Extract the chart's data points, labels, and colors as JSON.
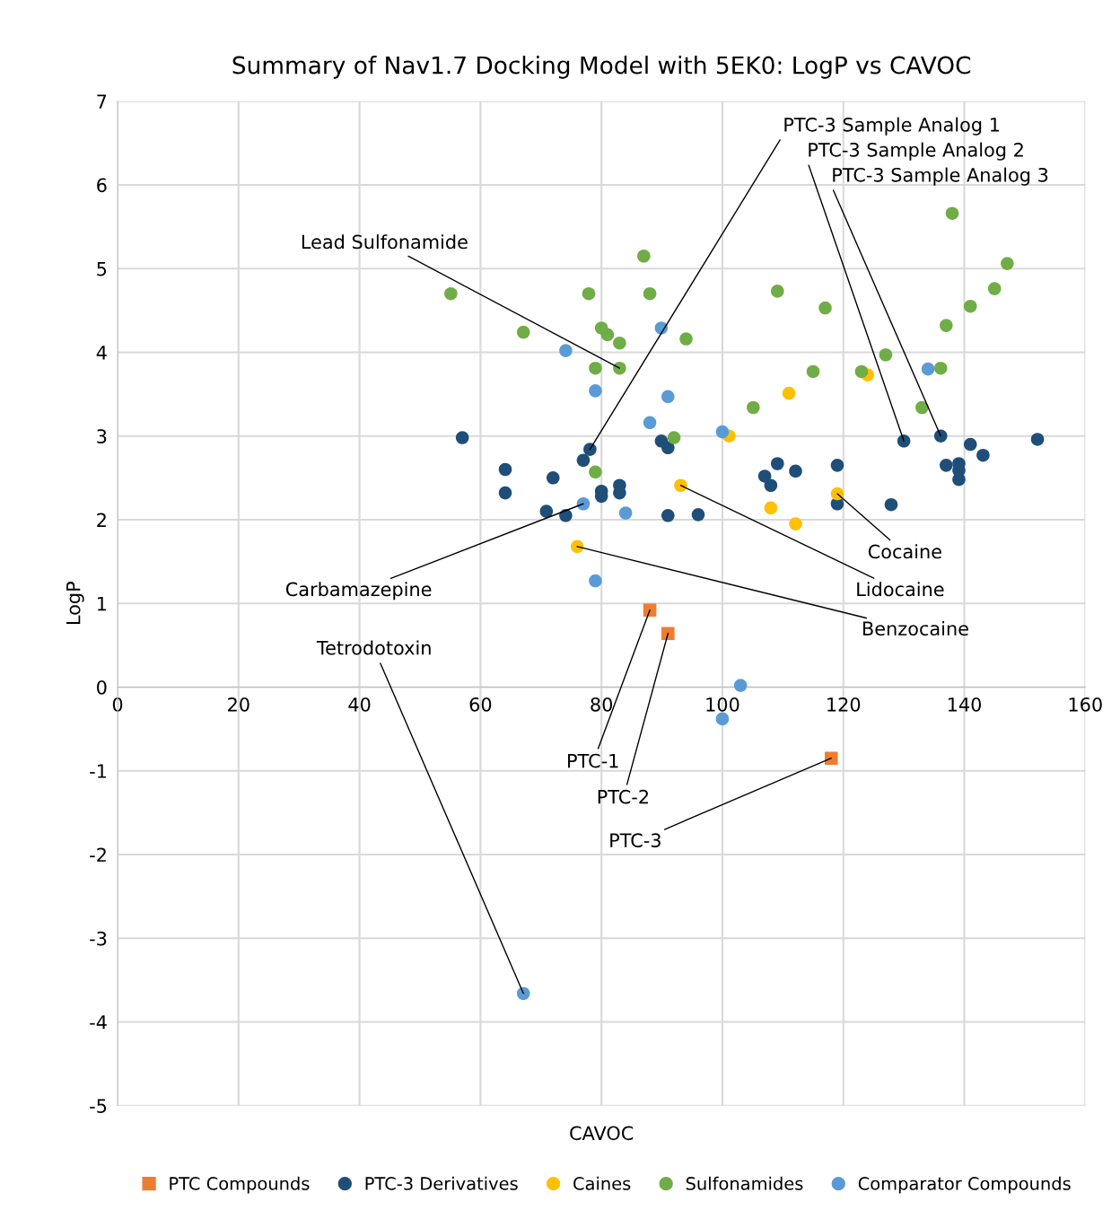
{
  "chart_data": {
    "type": "scatter",
    "title": "Summary of Nav1.7 Docking Model with 5EK0: LogP vs CAVOC",
    "xlabel": "CAVOC",
    "ylabel": "LogP",
    "xlim": [
      0,
      160
    ],
    "xticks": [
      0,
      20,
      40,
      60,
      80,
      100,
      120,
      140,
      160
    ],
    "ylim": [
      -5,
      7
    ],
    "yticks": [
      -5,
      -4,
      -3,
      -2,
      -1,
      0,
      1,
      2,
      3,
      4,
      5,
      6,
      7
    ],
    "grid": true,
    "legend": "bottom",
    "series": [
      {
        "name": "PTC Compounds",
        "color": "#ed7d31",
        "marker": "square",
        "x": [
          88.0,
          91.0,
          118.0
        ],
        "values": [
          0.92,
          0.64,
          -0.85
        ]
      },
      {
        "name": "PTC-3 Derivatives",
        "color": "#1f4e79",
        "marker": "circle",
        "x": [
          57.0,
          64.1,
          64.1,
          72.0,
          70.9,
          74.1,
          77.0,
          78.1,
          80.0,
          80.0,
          83.0,
          83.0,
          89.9,
          91.0,
          91.0,
          96.0,
          109.1,
          107.0,
          108.0,
          112.1,
          119.0,
          119.0,
          127.9,
          130.0,
          136.1,
          137.0,
          139.1,
          139.1,
          139.1,
          141.0,
          143.1,
          152.1
        ],
        "values": [
          2.98,
          2.6,
          2.32,
          2.5,
          2.1,
          2.05,
          2.71,
          2.84,
          2.34,
          2.28,
          2.41,
          2.32,
          2.94,
          2.86,
          2.05,
          2.06,
          2.67,
          2.52,
          2.41,
          2.58,
          2.65,
          2.19,
          2.18,
          2.94,
          3.0,
          2.65,
          2.67,
          2.59,
          2.48,
          2.9,
          2.77,
          2.96
        ]
      },
      {
        "name": "Caines",
        "color": "#ffc000",
        "marker": "circle",
        "x": [
          111.0,
          124.0,
          101.1,
          93.1,
          119.0,
          108.0,
          112.1,
          76.0
        ],
        "values": [
          3.51,
          3.73,
          3.0,
          2.41,
          2.31,
          2.14,
          1.95,
          1.68
        ]
      },
      {
        "name": "Sulfonamides",
        "color": "#70ad47",
        "marker": "circle",
        "x": [
          55.1,
          87.0,
          77.9,
          88.0,
          67.1,
          80.0,
          81.0,
          83.0,
          94.0,
          79.0,
          83.0,
          92.0,
          79.0,
          109.1,
          117.0,
          115.0,
          123.0,
          127.0,
          105.1,
          137.0,
          136.1,
          133.0,
          141.0,
          145.0,
          147.1,
          138.0
        ],
        "values": [
          4.7,
          5.15,
          4.7,
          4.7,
          4.24,
          4.29,
          4.21,
          4.11,
          4.16,
          3.81,
          3.81,
          2.98,
          2.57,
          4.73,
          4.53,
          3.77,
          3.77,
          3.97,
          3.34,
          4.32,
          3.81,
          3.34,
          4.55,
          4.76,
          5.06,
          5.66
        ]
      },
      {
        "name": "Comparator Compounds",
        "color": "#5b9bd5",
        "marker": "circle",
        "x": [
          74.1,
          89.9,
          79.0,
          91.0,
          88.0,
          100.0,
          134.0,
          77.0,
          84.0,
          79.0,
          103.0,
          100.0,
          67.1
        ],
        "values": [
          4.02,
          4.29,
          3.54,
          3.47,
          3.16,
          3.05,
          3.8,
          2.19,
          2.08,
          1.27,
          0.02,
          -0.38,
          -3.66
        ]
      }
    ],
    "annotations": [
      {
        "text": "PTC-3 Sample Analog 1",
        "x": 78.1,
        "y": 2.84
      },
      {
        "text": "PTC-3 Sample Analog 2",
        "x": 130.0,
        "y": 2.94
      },
      {
        "text": "PTC-3 Sample Analog 3",
        "x": 136.1,
        "y": 3.0
      },
      {
        "text": "Lead Sulfonamide",
        "x": 83.0,
        "y": 3.81
      },
      {
        "text": "Carbamazepine",
        "x": 77.0,
        "y": 2.19
      },
      {
        "text": "Cocaine",
        "x": 119.0,
        "y": 2.31
      },
      {
        "text": "Lidocaine",
        "x": 93.1,
        "y": 2.41
      },
      {
        "text": "Benzocaine",
        "x": 76.0,
        "y": 1.68
      },
      {
        "text": "Tetrodotoxin",
        "x": 67.1,
        "y": -3.66
      },
      {
        "text": "PTC-1",
        "x": 88.0,
        "y": 0.92
      },
      {
        "text": "PTC-2",
        "x": 91.0,
        "y": 0.64
      },
      {
        "text": "PTC-3",
        "x": 118.0,
        "y": -0.85
      }
    ]
  }
}
